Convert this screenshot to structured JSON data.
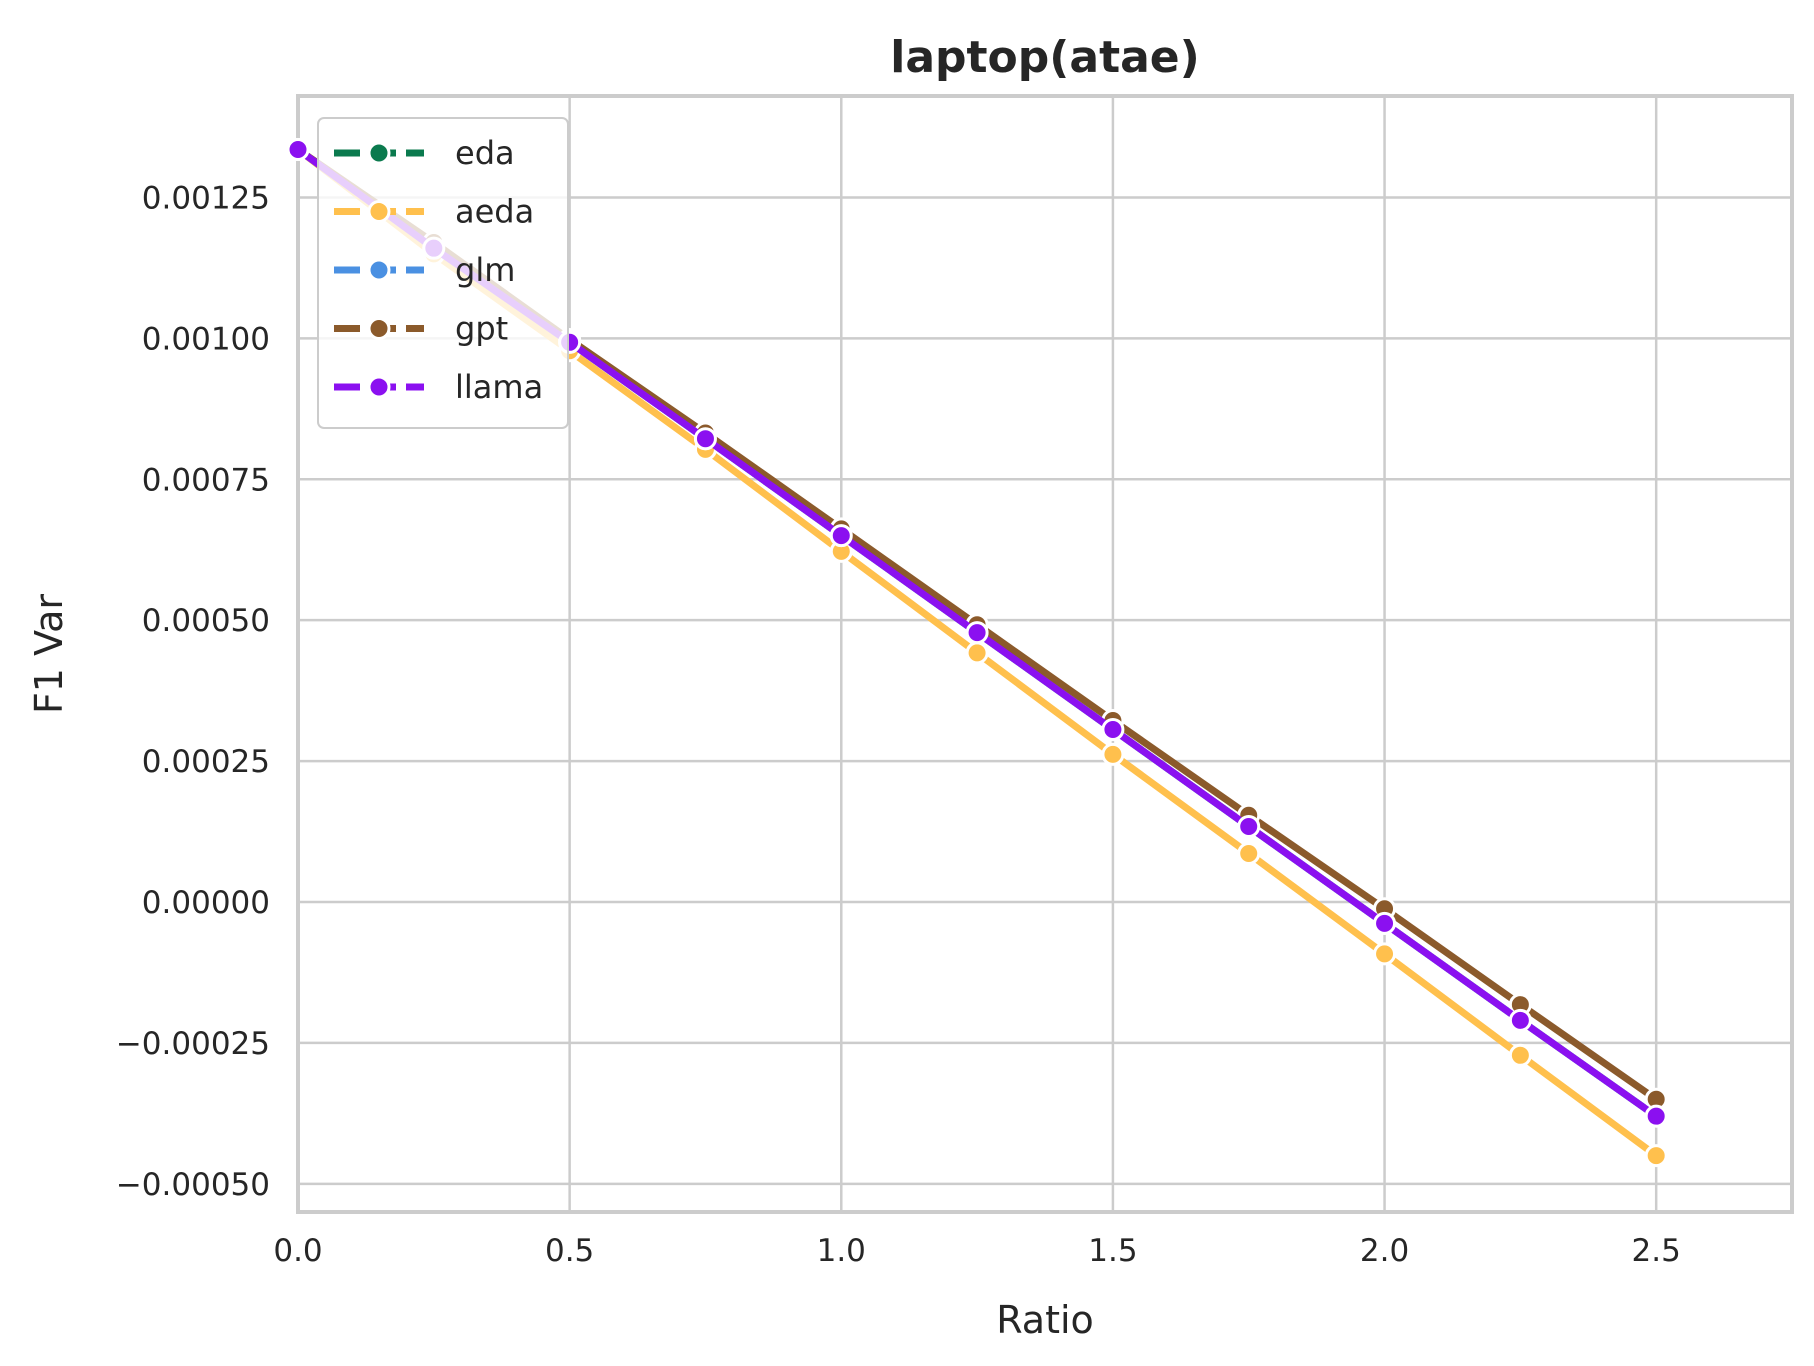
{
  "chart_data": {
    "type": "line",
    "title": "laptop(atae)",
    "xlabel": "Ratio",
    "ylabel": "F1 Var",
    "xlim": [
      0.0,
      2.75
    ],
    "ylim": [
      -0.00055,
      0.00143
    ],
    "xticks": [
      0.0,
      0.5,
      1.0,
      1.5,
      2.0,
      2.5
    ],
    "xtick_labels": [
      "0.0",
      "0.5",
      "1.0",
      "1.5",
      "2.0",
      "2.5"
    ],
    "yticks": [
      -0.0005,
      -0.00025,
      0.0,
      0.00025,
      0.0005,
      0.00075,
      0.001,
      0.00125
    ],
    "ytick_labels": [
      "−0.00050",
      "−0.00025",
      "0.00000",
      "0.00025",
      "0.00050",
      "0.00075",
      "0.00100",
      "0.00125"
    ],
    "grid": true,
    "legend_position": "top-left",
    "x": [
      0.0,
      0.25,
      0.5,
      0.75,
      1.0,
      1.25,
      1.5,
      1.75,
      2.0,
      2.25,
      2.5
    ],
    "series": [
      {
        "name": "eda",
        "color": "#0b7a4e",
        "values": [
          0.001335,
          0.00116,
          0.000993,
          0.000822,
          0.00065,
          0.000478,
          0.000306,
          0.000134,
          -3.8e-05,
          -0.00021,
          -0.00038
        ]
      },
      {
        "name": "aeda",
        "color": "#ffc04d",
        "values": [
          0.001335,
          0.00115,
          0.000978,
          0.000803,
          0.000622,
          0.000442,
          0.000262,
          8.6e-05,
          -9.2e-05,
          -0.000272,
          -0.00045
        ]
      },
      {
        "name": "glm",
        "color": "#4a90e2",
        "values": [
          0.001335,
          0.00116,
          0.000993,
          0.000822,
          0.00065,
          0.000478,
          0.000306,
          0.000134,
          -3.8e-05,
          -0.00021,
          -0.00038
        ]
      },
      {
        "name": "gpt",
        "color": "#8b5a2b",
        "values": [
          0.001335,
          0.00117,
          0.000998,
          0.000832,
          0.000662,
          0.000492,
          0.000322,
          0.000154,
          -1.2e-05,
          -0.000182,
          -0.00035
        ]
      },
      {
        "name": "llama",
        "color": "#8b10f0",
        "values": [
          0.001335,
          0.00116,
          0.000993,
          0.000822,
          0.00065,
          0.000478,
          0.000306,
          0.000134,
          -3.8e-05,
          -0.00021,
          -0.00038
        ]
      }
    ]
  }
}
